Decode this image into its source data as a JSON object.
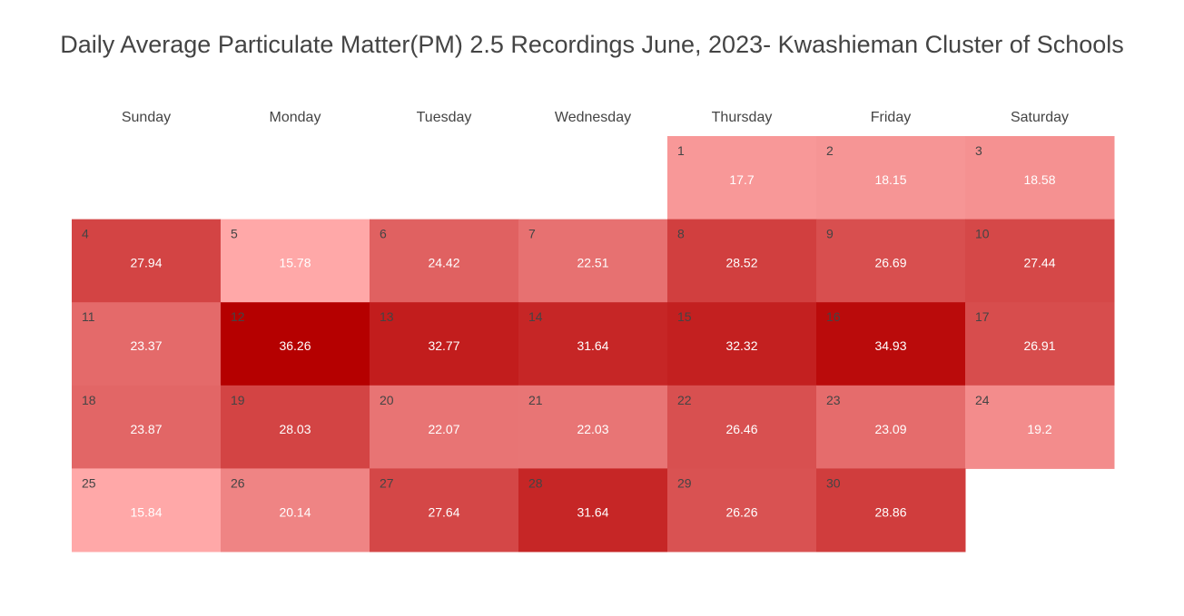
{
  "chart_data": {
    "type": "heatmap",
    "title": "Daily Average Particulate Matter(PM) 2.5 Recordings June, 2023- Kwashieman Cluster of Schools",
    "weekdays": [
      "Sunday",
      "Monday",
      "Tuesday",
      "Wednesday",
      "Thursday",
      "Friday",
      "Saturday"
    ],
    "days": [
      {
        "day": "1",
        "weekday": 4,
        "week": 0,
        "value": 17.7,
        "label": "17.7"
      },
      {
        "day": "2",
        "weekday": 5,
        "week": 0,
        "value": 18.15,
        "label": "18.15"
      },
      {
        "day": "3",
        "weekday": 6,
        "week": 0,
        "value": 18.58,
        "label": "18.58"
      },
      {
        "day": "4",
        "weekday": 0,
        "week": 1,
        "value": 27.94,
        "label": "27.94"
      },
      {
        "day": "5",
        "weekday": 1,
        "week": 1,
        "value": 15.78,
        "label": "15.78"
      },
      {
        "day": "6",
        "weekday": 2,
        "week": 1,
        "value": 24.42,
        "label": "24.42"
      },
      {
        "day": "7",
        "weekday": 3,
        "week": 1,
        "value": 22.51,
        "label": "22.51"
      },
      {
        "day": "8",
        "weekday": 4,
        "week": 1,
        "value": 28.52,
        "label": "28.52"
      },
      {
        "day": "9",
        "weekday": 5,
        "week": 1,
        "value": 26.69,
        "label": "26.69"
      },
      {
        "day": "10",
        "weekday": 6,
        "week": 1,
        "value": 27.44,
        "label": "27.44"
      },
      {
        "day": "11",
        "weekday": 0,
        "week": 2,
        "value": 23.37,
        "label": "23.37"
      },
      {
        "day": "12",
        "weekday": 1,
        "week": 2,
        "value": 36.26,
        "label": "36.26"
      },
      {
        "day": "13",
        "weekday": 2,
        "week": 2,
        "value": 32.77,
        "label": "32.77"
      },
      {
        "day": "14",
        "weekday": 3,
        "week": 2,
        "value": 31.64,
        "label": "31.64"
      },
      {
        "day": "15",
        "weekday": 4,
        "week": 2,
        "value": 32.32,
        "label": "32.32"
      },
      {
        "day": "16",
        "weekday": 5,
        "week": 2,
        "value": 34.93,
        "label": "34.93"
      },
      {
        "day": "17",
        "weekday": 6,
        "week": 2,
        "value": 26.91,
        "label": "26.91"
      },
      {
        "day": "18",
        "weekday": 0,
        "week": 3,
        "value": 23.87,
        "label": "23.87"
      },
      {
        "day": "19",
        "weekday": 1,
        "week": 3,
        "value": 28.03,
        "label": "28.03"
      },
      {
        "day": "20",
        "weekday": 2,
        "week": 3,
        "value": 22.07,
        "label": "22.07"
      },
      {
        "day": "21",
        "weekday": 3,
        "week": 3,
        "value": 22.03,
        "label": "22.03"
      },
      {
        "day": "22",
        "weekday": 4,
        "week": 3,
        "value": 26.46,
        "label": "26.46"
      },
      {
        "day": "23",
        "weekday": 5,
        "week": 3,
        "value": 23.09,
        "label": "23.09"
      },
      {
        "day": "24",
        "weekday": 6,
        "week": 3,
        "value": 19.2,
        "label": "19.2"
      },
      {
        "day": "25",
        "weekday": 0,
        "week": 4,
        "value": 15.84,
        "label": "15.84"
      },
      {
        "day": "26",
        "weekday": 1,
        "week": 4,
        "value": 20.14,
        "label": "20.14"
      },
      {
        "day": "27",
        "weekday": 2,
        "week": 4,
        "value": 27.64,
        "label": "27.64"
      },
      {
        "day": "28",
        "weekday": 3,
        "week": 4,
        "value": 31.64,
        "label": "31.64"
      },
      {
        "day": "29",
        "weekday": 4,
        "week": 4,
        "value": 26.26,
        "label": "26.26"
      },
      {
        "day": "30",
        "weekday": 5,
        "week": 4,
        "value": 28.86,
        "label": "28.86"
      }
    ],
    "value_range": [
      15.78,
      36.26
    ],
    "color_scale": {
      "low": "#ffa8a8",
      "high": "#b50000"
    }
  }
}
